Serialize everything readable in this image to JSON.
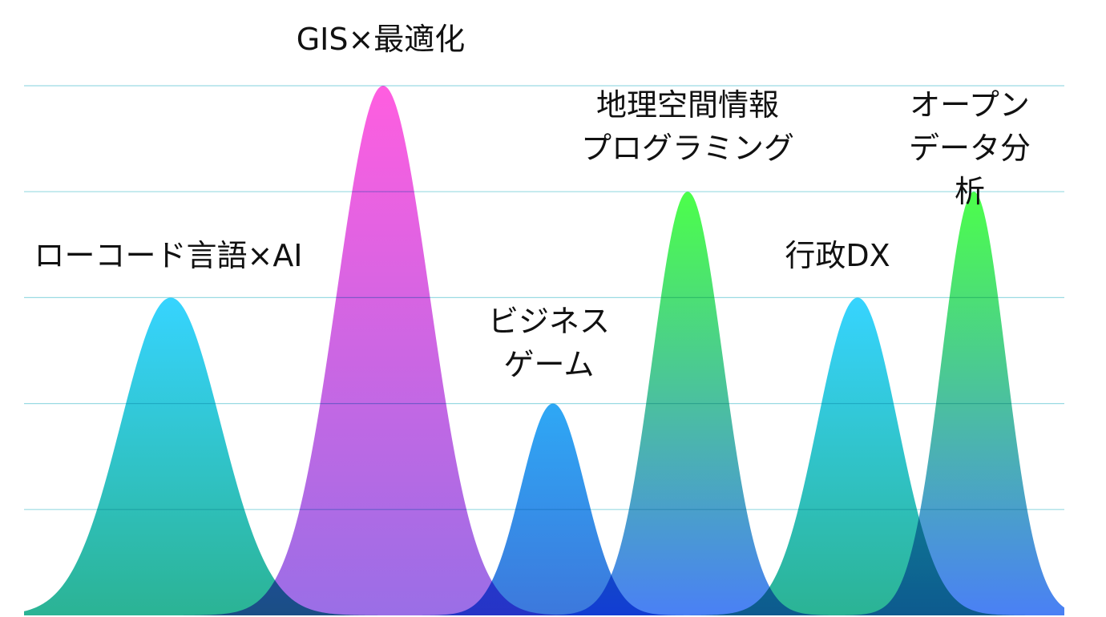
{
  "chart_data": {
    "type": "peak",
    "categories": [
      "ローコード言語×AI",
      "GIS×最適化",
      "ビジネス\nゲーム",
      "地理空間情報\nプログラミング",
      "行政DX",
      "オープン\nデータ分析"
    ],
    "values": [
      3,
      5,
      2,
      4,
      3,
      4
    ],
    "colors": [
      [
        "#36d4ff",
        "#2bb394"
      ],
      [
        "#ff5ee0",
        "#9a6ee6"
      ],
      [
        "#2ea8f5",
        "#3d78dc"
      ],
      [
        "#4cff4a",
        "#4a80f5"
      ],
      [
        "#36d4ff",
        "#2bb394"
      ],
      [
        "#4cff4a",
        "#4a80f5"
      ]
    ],
    "ylim": [
      0,
      5
    ],
    "yticks": [
      1,
      2,
      3,
      4,
      5
    ],
    "grid": true
  }
}
